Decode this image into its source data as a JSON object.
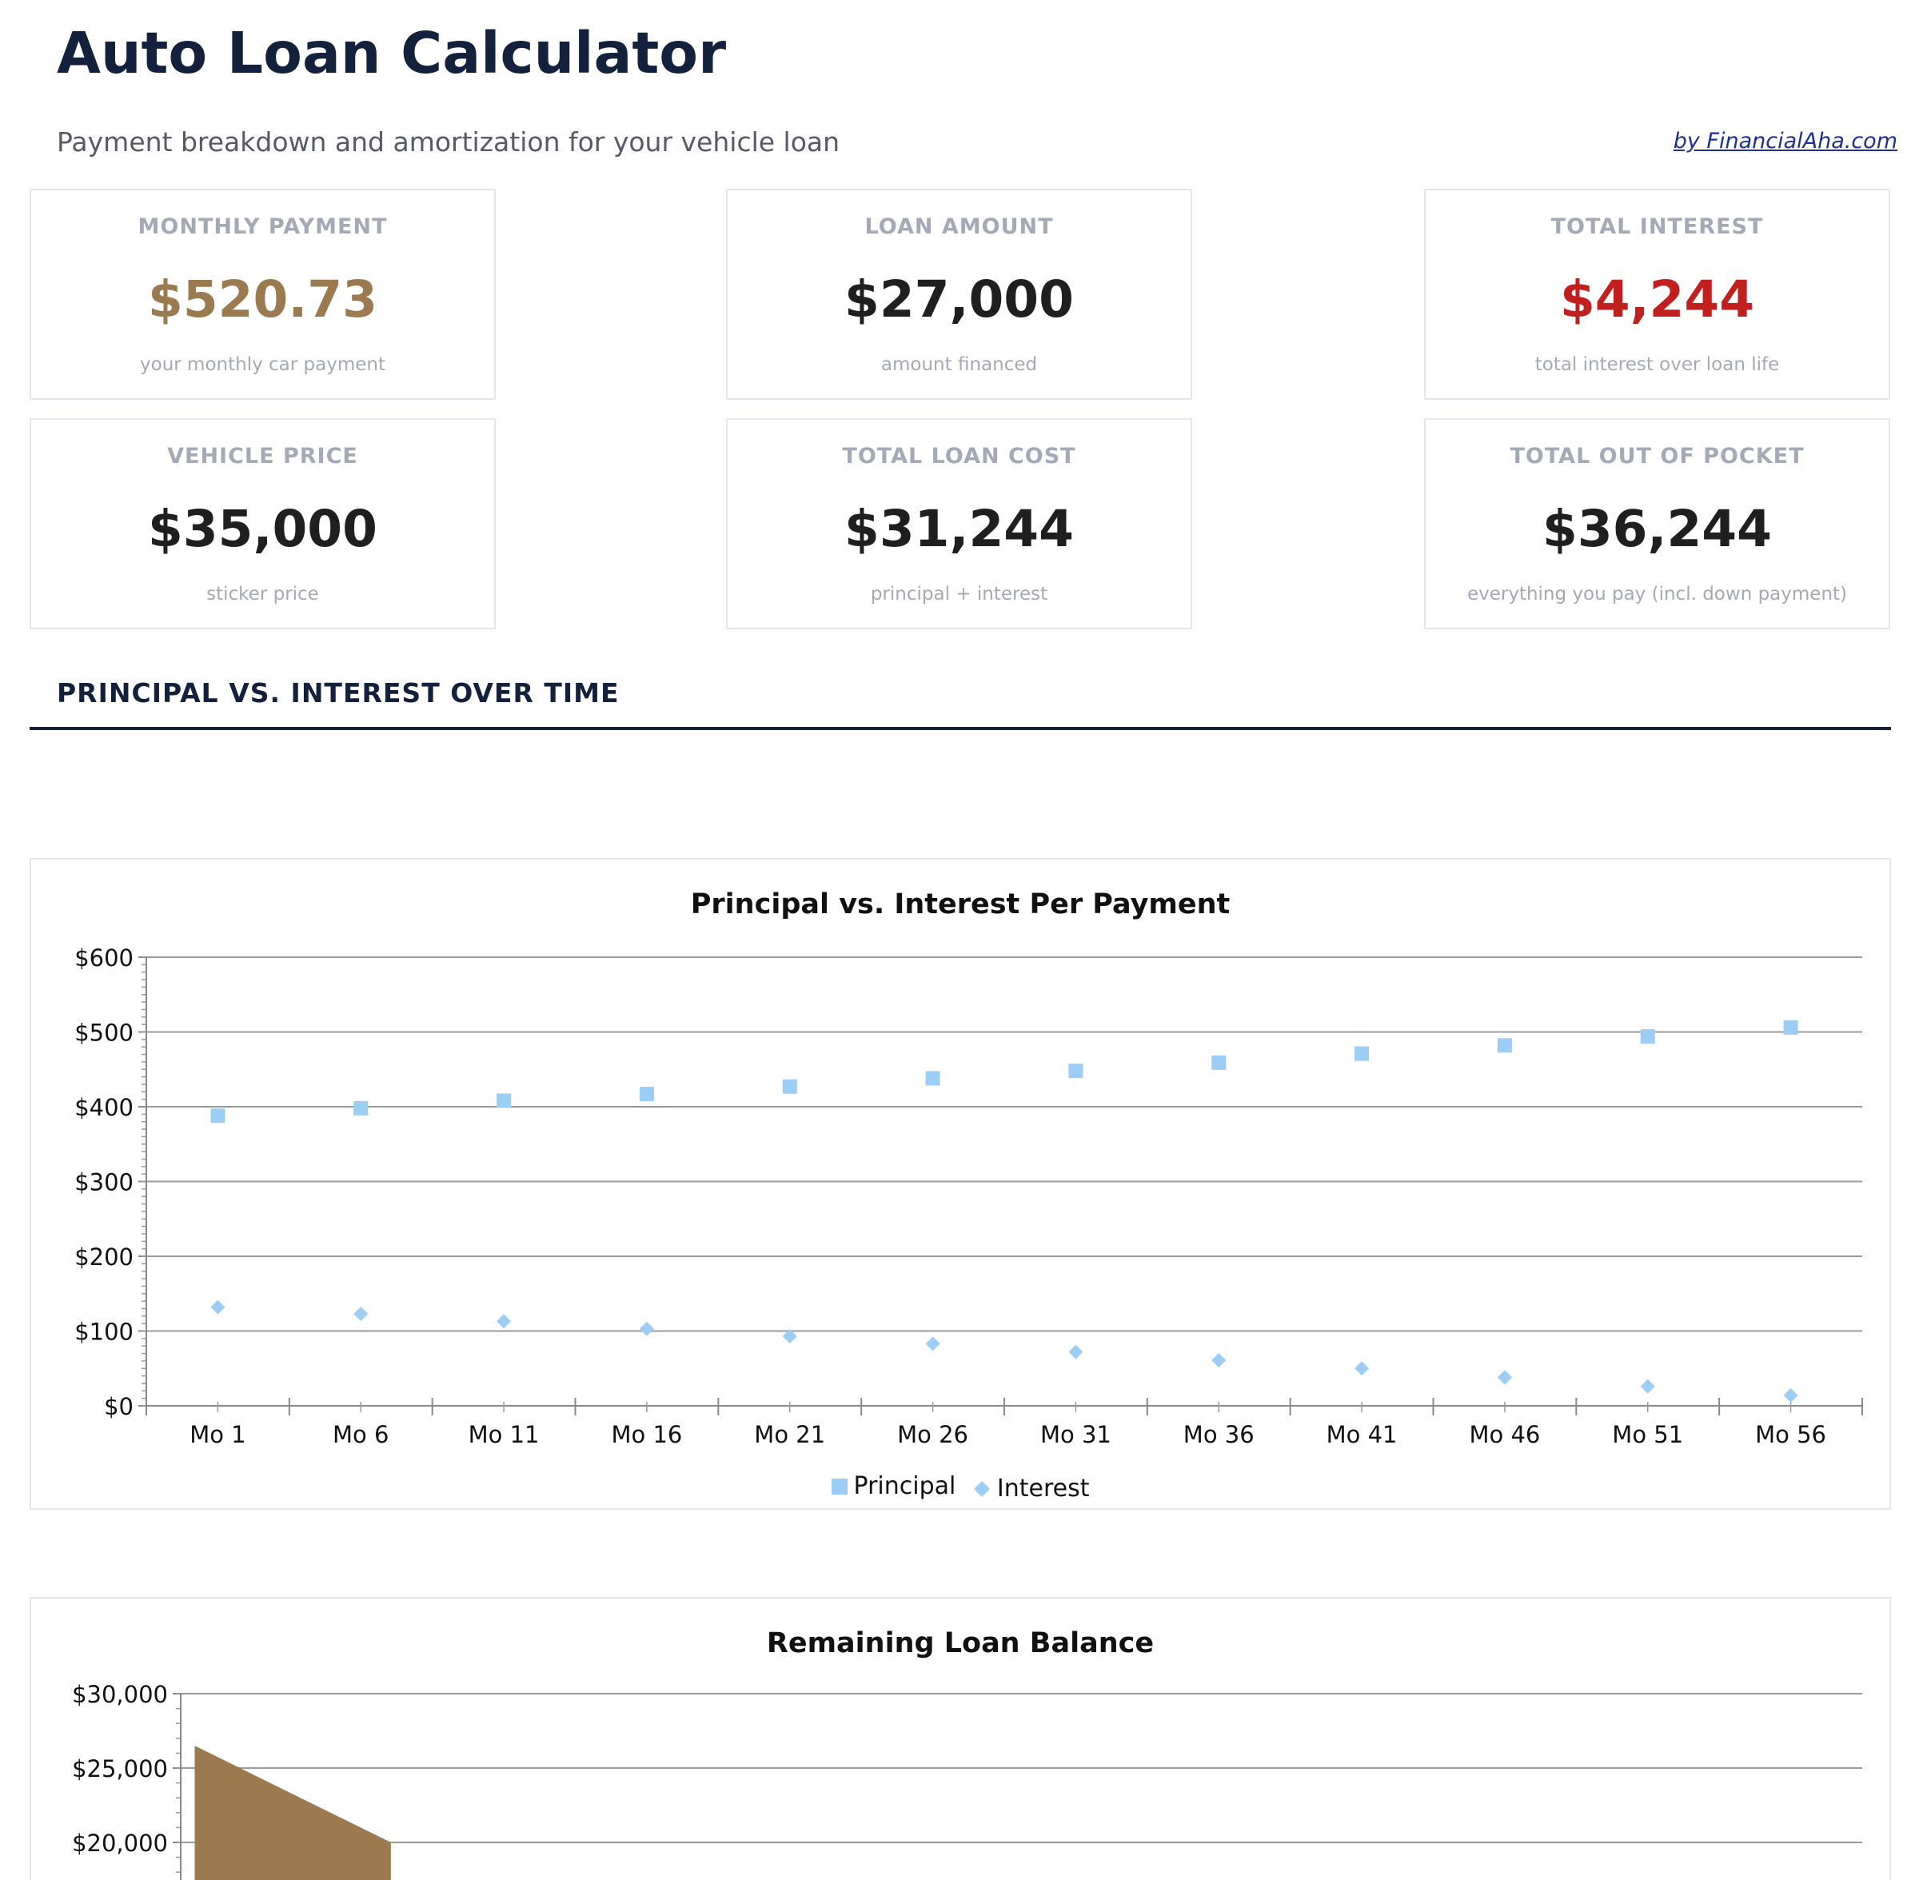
{
  "header": {
    "title": "Auto Loan Calculator",
    "subtitle": "Payment breakdown and amortization for your vehicle loan",
    "brand_link": "by FinancialAha.com"
  },
  "cards": [
    {
      "label": "MONTHLY PAYMENT",
      "value": "$520.73",
      "note": "your monthly car payment",
      "value_color": "#9b7a4f"
    },
    {
      "label": "LOAN AMOUNT",
      "value": "$27,000",
      "note": "amount financed",
      "value_color": "#1f1f1f"
    },
    {
      "label": "TOTAL INTEREST",
      "value": "$4,244",
      "note": "total interest over loan life",
      "value_color": "#c0211f"
    },
    {
      "label": "VEHICLE PRICE",
      "value": "$35,000",
      "note": "sticker price",
      "value_color": "#1f1f1f"
    },
    {
      "label": "TOTAL LOAN COST",
      "value": "$31,244",
      "note": "principal + interest",
      "value_color": "#1f1f1f"
    },
    {
      "label": "TOTAL OUT OF POCKET",
      "value": "$36,244",
      "note": "everything you pay (incl. down payment)",
      "value_color": "#1f1f1f"
    }
  ],
  "section": {
    "heading": "PRINCIPAL VS. INTEREST OVER TIME"
  },
  "colors": {
    "navy": "#13213d",
    "series": "#9ccdf5",
    "area": "#9b7a4f"
  },
  "chart_data": [
    {
      "type": "scatter",
      "title": "Principal vs. Interest Per Payment",
      "categories": [
        "Mo 1",
        "Mo 6",
        "Mo 11",
        "Mo 16",
        "Mo 21",
        "Mo 26",
        "Mo 31",
        "Mo 36",
        "Mo 41",
        "Mo 46",
        "Mo 51",
        "Mo 56"
      ],
      "series": [
        {
          "name": "Principal",
          "marker": "square",
          "values": [
            388,
            398,
            408,
            417,
            427,
            438,
            448,
            459,
            471,
            482,
            494,
            506
          ]
        },
        {
          "name": "Interest",
          "marker": "diamond",
          "values": [
            132,
            123,
            113,
            103,
            93,
            83,
            72,
            61,
            50,
            38,
            26,
            14
          ]
        }
      ],
      "ylim": [
        0,
        600
      ],
      "yticks": [
        0,
        100,
        200,
        300,
        400,
        500,
        600
      ],
      "ytick_labels": [
        "$0",
        "$100",
        "$200",
        "$300",
        "$400",
        "$500",
        "$600"
      ],
      "grid": true,
      "legend": "bottom"
    },
    {
      "type": "area",
      "title": "Remaining Loan Balance",
      "x": [
        1,
        8
      ],
      "values": [
        26500,
        20000
      ],
      "ylim": [
        0,
        30000
      ],
      "yticks": [
        20000,
        25000,
        30000
      ],
      "ytick_labels": [
        "$20,000",
        "$25,000",
        "$30,000"
      ],
      "grid": true
    }
  ]
}
